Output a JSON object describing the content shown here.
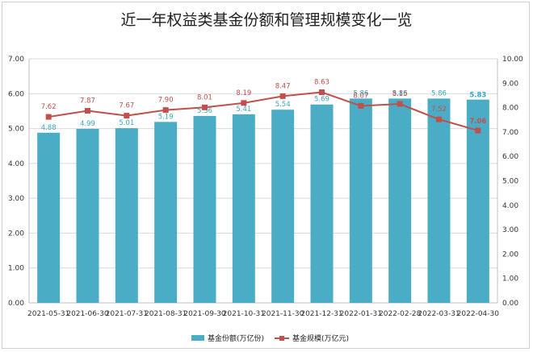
{
  "title": "近一年权益类基金份额和管理规模变化一览",
  "chart_data": {
    "type": "bar+line",
    "categories": [
      "2021-05-31",
      "2021-06-30",
      "2021-07-31",
      "2021-08-31",
      "2021-09-30",
      "2021-10-31",
      "2021-11-30",
      "2021-12-31",
      "2022-01-31",
      "2022-02-28",
      "2022-03-31",
      "2022-04-30"
    ],
    "series": [
      {
        "name": "基金份额(万亿份)",
        "type": "bar",
        "axis": "left",
        "color": "#4bacc6",
        "values": [
          4.88,
          4.99,
          5.01,
          5.19,
          5.36,
          5.41,
          5.54,
          5.69,
          5.86,
          5.86,
          5.86,
          5.83
        ]
      },
      {
        "name": "基金规模(万亿元)",
        "type": "line",
        "axis": "right",
        "color": "#c0504d",
        "values": [
          7.62,
          7.87,
          7.67,
          7.9,
          8.01,
          8.19,
          8.47,
          8.63,
          8.07,
          8.15,
          7.52,
          7.06
        ]
      }
    ],
    "bar_labels": [
      "4.88",
      "4.99",
      "5.01",
      "5.19",
      "5.36",
      "5.41",
      "5.54",
      "5.69",
      "5.86",
      "5.86",
      "5.86",
      "5.83"
    ],
    "line_labels": [
      "7.62",
      "7.87",
      "7.67",
      "7.90",
      "8.01",
      "8.19",
      "8.47",
      "8.63",
      "8.07",
      "8.15",
      "7.52",
      "7.06"
    ],
    "ylim_left": [
      0,
      7
    ],
    "ylim_right": [
      0,
      10
    ],
    "yticks_left": [
      "0.00",
      "1.00",
      "2.00",
      "3.00",
      "4.00",
      "5.00",
      "6.00",
      "7.00"
    ],
    "yticks_right": [
      "0.00",
      "1.00",
      "2.00",
      "3.00",
      "4.00",
      "5.00",
      "6.00",
      "7.00",
      "8.00",
      "9.00",
      "10.00"
    ],
    "grid": true,
    "legend_position": "bottom"
  }
}
